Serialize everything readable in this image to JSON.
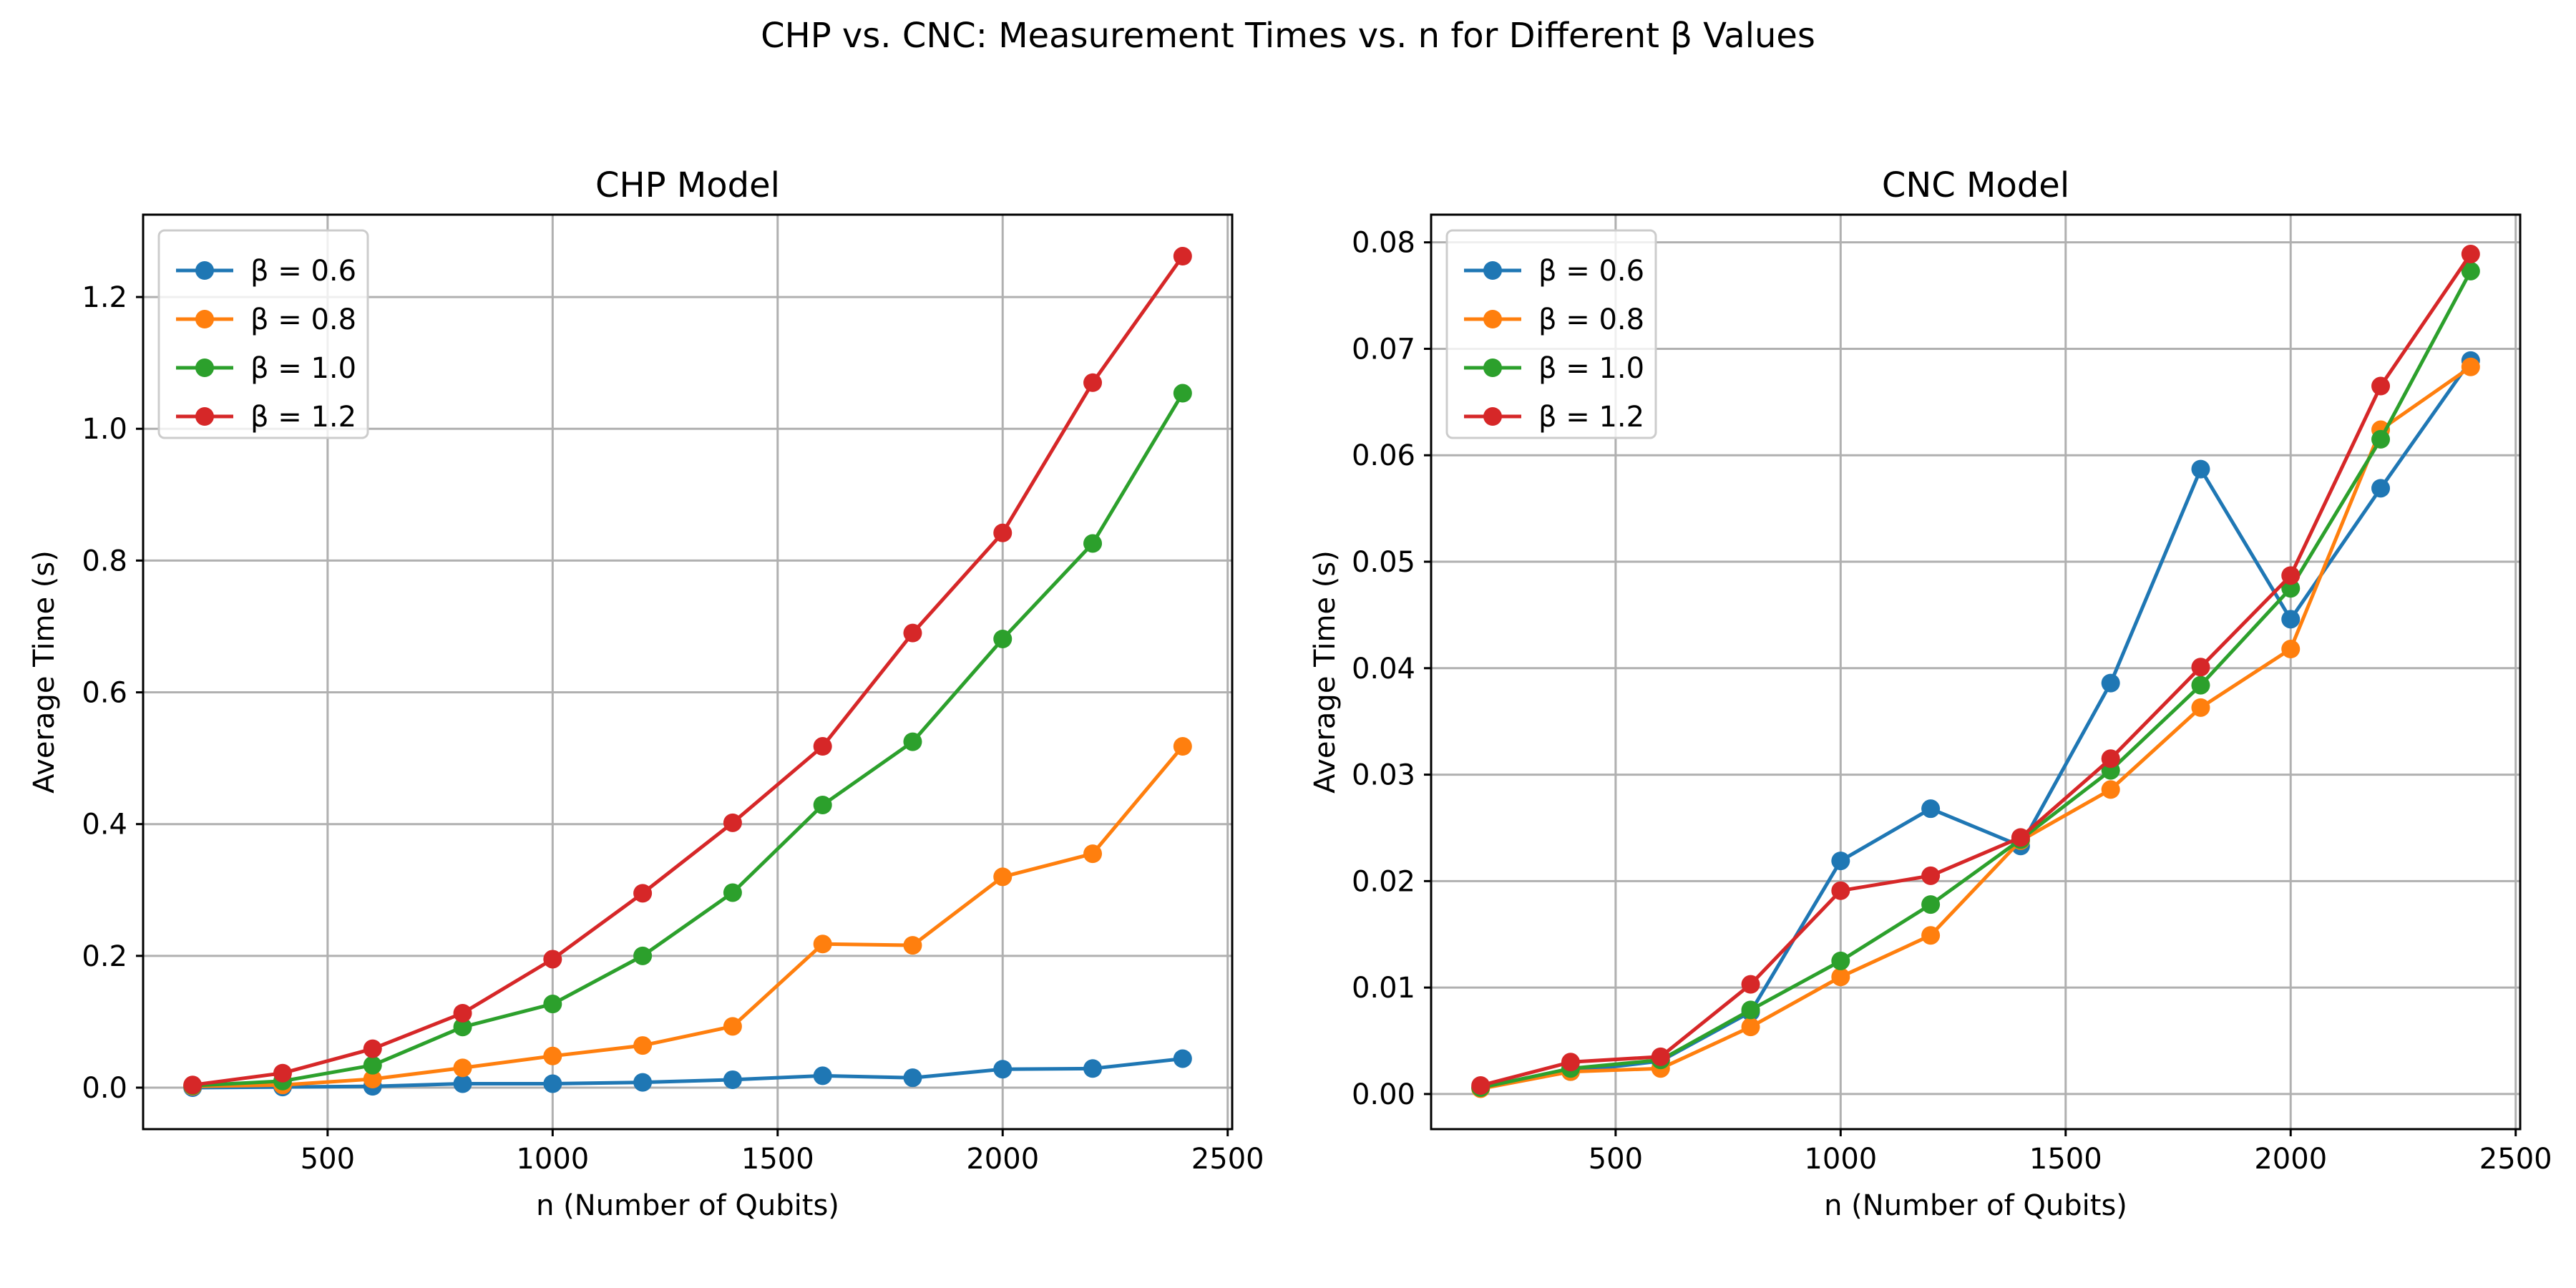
{
  "suptitle": "CHP vs. CNC: Measurement Times vs. n for Different β Values",
  "chart_data": [
    {
      "type": "line",
      "title": "CHP Model",
      "xlabel": "n (Number of Qubits)",
      "ylabel": "Average Time (s)",
      "xlim": [
        90,
        2510
      ],
      "ylim": [
        -0.063,
        1.325
      ],
      "xticks": [
        500,
        1000,
        1500,
        2000,
        2500
      ],
      "xtick_labels": [
        "500",
        "1000",
        "1500",
        "2000",
        "2500"
      ],
      "yticks": [
        0.0,
        0.2,
        0.4,
        0.6,
        0.8,
        1.0,
        1.2
      ],
      "ytick_labels": [
        "0.0",
        "0.2",
        "0.4",
        "0.6",
        "0.8",
        "1.0",
        "1.2"
      ],
      "grid": true,
      "legend": "upper left",
      "x": [
        200,
        400,
        600,
        800,
        1000,
        1200,
        1400,
        1600,
        1800,
        2000,
        2200,
        2400
      ],
      "series": [
        {
          "name": "β = 0.6",
          "color": "#1f77b4",
          "values": [
            0.0,
            0.001,
            0.002,
            0.006,
            0.006,
            0.008,
            0.012,
            0.018,
            0.015,
            0.028,
            0.029,
            0.044
          ]
        },
        {
          "name": "β = 0.8",
          "color": "#ff7f0e",
          "values": [
            0.002,
            0.004,
            0.013,
            0.03,
            0.048,
            0.064,
            0.093,
            0.218,
            0.216,
            0.32,
            0.355,
            0.518
          ]
        },
        {
          "name": "β = 1.0",
          "color": "#2ca02c",
          "values": [
            0.003,
            0.01,
            0.034,
            0.092,
            0.127,
            0.2,
            0.296,
            0.429,
            0.525,
            0.681,
            0.826,
            1.054
          ]
        },
        {
          "name": "β = 1.2",
          "color": "#d62728",
          "values": [
            0.004,
            0.022,
            0.059,
            0.113,
            0.195,
            0.295,
            0.402,
            0.518,
            0.69,
            0.842,
            1.07,
            1.262
          ]
        }
      ]
    },
    {
      "type": "line",
      "title": "CNC Model",
      "xlabel": "n (Number of Qubits)",
      "ylabel": "Average Time (s)",
      "xlim": [
        90,
        2510
      ],
      "ylim": [
        -0.0033,
        0.0826
      ],
      "xticks": [
        500,
        1000,
        1500,
        2000,
        2500
      ],
      "xtick_labels": [
        "500",
        "1000",
        "1500",
        "2000",
        "2500"
      ],
      "yticks": [
        0.0,
        0.01,
        0.02,
        0.03,
        0.04,
        0.05,
        0.06,
        0.07,
        0.08
      ],
      "ytick_labels": [
        "0.00",
        "0.01",
        "0.02",
        "0.03",
        "0.04",
        "0.05",
        "0.06",
        "0.07",
        "0.08"
      ],
      "grid": true,
      "legend": "upper left",
      "x": [
        200,
        400,
        600,
        800,
        1000,
        1200,
        1400,
        1600,
        1800,
        2000,
        2200,
        2400
      ],
      "series": [
        {
          "name": "β = 0.6",
          "color": "#1f77b4",
          "values": [
            0.0006,
            0.0021,
            0.0031,
            0.0077,
            0.0219,
            0.0268,
            0.0233,
            0.0386,
            0.0587,
            0.0446,
            0.0569,
            0.0689
          ]
        },
        {
          "name": "β = 0.8",
          "color": "#ff7f0e",
          "values": [
            0.0005,
            0.0021,
            0.0024,
            0.0063,
            0.011,
            0.0149,
            0.0238,
            0.0286,
            0.0363,
            0.0418,
            0.0624,
            0.0683
          ]
        },
        {
          "name": "β = 1.0",
          "color": "#2ca02c",
          "values": [
            0.0006,
            0.0024,
            0.0032,
            0.0079,
            0.0125,
            0.0178,
            0.0239,
            0.0304,
            0.0384,
            0.0475,
            0.0615,
            0.0773
          ]
        },
        {
          "name": "β = 1.2",
          "color": "#d62728",
          "values": [
            0.0008,
            0.003,
            0.0035,
            0.0103,
            0.0191,
            0.0205,
            0.0241,
            0.0315,
            0.0401,
            0.0487,
            0.0665,
            0.0789
          ]
        }
      ]
    }
  ]
}
